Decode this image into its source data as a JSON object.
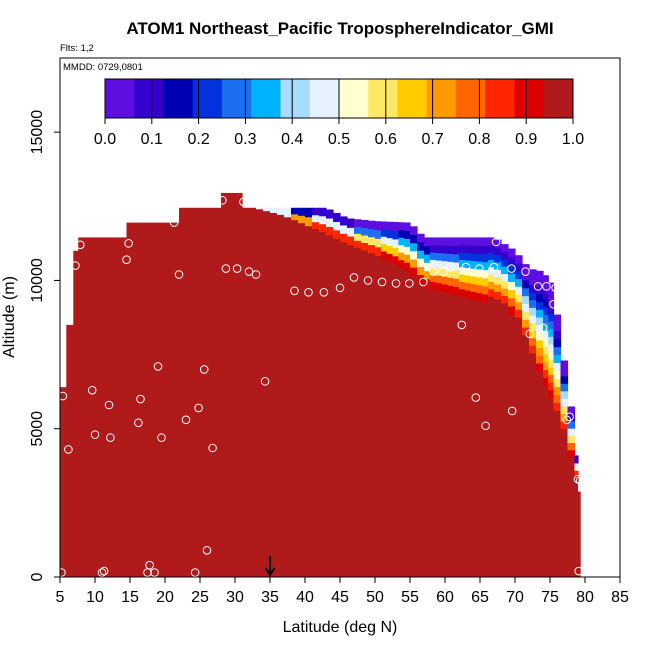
{
  "chart_data": {
    "type": "heatmap",
    "title": "ATOM1 Northeast_Pacific TroposphereIndicator_GMI",
    "notes": [
      "Flts: 1,2",
      "MMDD: 0729,0801"
    ],
    "xlabel": "Latitude (deg N)",
    "ylabel": "Altitude (m)",
    "xlim": [
      5,
      85
    ],
    "ylim": [
      0,
      17500
    ],
    "xticks": [
      5,
      10,
      15,
      20,
      25,
      30,
      35,
      40,
      45,
      50,
      55,
      60,
      65,
      70,
      75,
      80,
      85
    ],
    "yticks": [
      0,
      5000,
      10000,
      15000
    ],
    "colorbar": {
      "ticks": [
        "0.0",
        "0.1",
        "0.2",
        "0.3",
        "0.4",
        "0.5",
        "0.6",
        "0.7",
        "0.8",
        "0.9",
        "1.0"
      ],
      "range": [
        0,
        1
      ],
      "placement": "top, inside plot",
      "colors": [
        "#5e0ee0",
        "#3300cc",
        "#0000b3",
        "#0033dd",
        "#1d6ff2",
        "#00b3ff",
        "#a6dcff",
        "#e6f2ff",
        "#ffffd0",
        "#ffe866",
        "#ffcc00",
        "#ff9900",
        "#ff6600",
        "#ff2600",
        "#dd0000",
        "#b01a1a"
      ]
    },
    "marker": {
      "latitude": 35,
      "symbol": "down-arrow"
    },
    "mask_columns": [
      {
        "lat": 4.9,
        "top": 6400
      },
      {
        "lat": 5.9,
        "top": 8500
      },
      {
        "lat": 6.9,
        "top": 11000
      },
      {
        "lat": 7.6,
        "top": 11450
      },
      {
        "lat": 14.5,
        "top": 11950
      },
      {
        "lat": 22.0,
        "top": 12450
      },
      {
        "lat": 28.0,
        "top": 12950
      },
      {
        "lat": 31.0,
        "top": 12450
      },
      {
        "lat": 33.0,
        "top": 12450
      }
    ],
    "profile": [
      {
        "lat": 33.0,
        "top": 12450,
        "transition": 12450
      },
      {
        "lat": 37.0,
        "top": 12450,
        "transition": 12200
      },
      {
        "lat": 40.0,
        "top": 12450,
        "transition": 11900
      },
      {
        "lat": 43.0,
        "top": 12450,
        "transition": 11600
      },
      {
        "lat": 46.0,
        "top": 12100,
        "transition": 11250
      },
      {
        "lat": 50.0,
        "top": 12000,
        "transition": 10900
      },
      {
        "lat": 55.0,
        "top": 11950,
        "transition": 10300
      },
      {
        "lat": 57.0,
        "top": 11450,
        "transition": 9800
      },
      {
        "lat": 62.0,
        "top": 11450,
        "transition": 9500
      },
      {
        "lat": 67.0,
        "top": 11450,
        "transition": 9200
      },
      {
        "lat": 70.0,
        "top": 11000,
        "transition": 8800
      },
      {
        "lat": 72.0,
        "top": 10400,
        "transition": 7600
      },
      {
        "lat": 74.0,
        "top": 10300,
        "transition": 6400
      },
      {
        "lat": 75.5,
        "top": 9800,
        "transition": 5600
      },
      {
        "lat": 76.5,
        "top": 7900,
        "transition": 5100
      },
      {
        "lat": 77.5,
        "top": 6700,
        "transition": 4400
      },
      {
        "lat": 78.5,
        "top": 4800,
        "transition": 3700
      },
      {
        "lat": 79.0,
        "top": 3400,
        "transition": 3000
      },
      {
        "lat": 79.3,
        "top": 3000,
        "transition": 2800
      }
    ],
    "points": [
      [
        5.4,
        6100
      ],
      [
        5.2,
        150
      ],
      [
        6.2,
        4300
      ],
      [
        7.2,
        10500
      ],
      [
        7.9,
        11200
      ],
      [
        9.6,
        6300
      ],
      [
        10.0,
        4800
      ],
      [
        11.0,
        150
      ],
      [
        11.3,
        200
      ],
      [
        12.0,
        5800
      ],
      [
        12.2,
        4700
      ],
      [
        14.5,
        10700
      ],
      [
        14.8,
        11250
      ],
      [
        16.2,
        5200
      ],
      [
        16.5,
        6000
      ],
      [
        17.5,
        150
      ],
      [
        17.8,
        400
      ],
      [
        18.5,
        150
      ],
      [
        19.0,
        7100
      ],
      [
        19.5,
        4700
      ],
      [
        21.3,
        11950
      ],
      [
        22.0,
        10200
      ],
      [
        23.0,
        5300
      ],
      [
        24.3,
        150
      ],
      [
        24.8,
        5700
      ],
      [
        25.6,
        7000
      ],
      [
        26.0,
        900
      ],
      [
        26.8,
        4350
      ],
      [
        28.2,
        12700
      ],
      [
        28.7,
        10400
      ],
      [
        30.3,
        10400
      ],
      [
        31.2,
        12650
      ],
      [
        32.0,
        10300
      ],
      [
        33.0,
        10200
      ],
      [
        34.3,
        6600
      ],
      [
        38.5,
        9650
      ],
      [
        40.5,
        9600
      ],
      [
        42.7,
        9600
      ],
      [
        45.0,
        9750
      ],
      [
        47.0,
        10100
      ],
      [
        49.0,
        10000
      ],
      [
        51.0,
        9950
      ],
      [
        53.0,
        9900
      ],
      [
        54.9,
        9900
      ],
      [
        56.9,
        9950
      ],
      [
        58.3,
        10300
      ],
      [
        59.7,
        10300
      ],
      [
        60.8,
        10450
      ],
      [
        62.4,
        8500
      ],
      [
        63.0,
        10450
      ],
      [
        64.4,
        6050
      ],
      [
        64.9,
        10400
      ],
      [
        65.8,
        5100
      ],
      [
        67.0,
        10450
      ],
      [
        67.3,
        11300
      ],
      [
        69.5,
        10400
      ],
      [
        69.6,
        5600
      ],
      [
        71.5,
        10300
      ],
      [
        72.1,
        8200
      ],
      [
        73.3,
        9800
      ],
      [
        74.0,
        8400
      ],
      [
        74.5,
        9800
      ],
      [
        75.5,
        9200
      ],
      [
        75.8,
        9750
      ],
      [
        77.4,
        5300
      ],
      [
        77.8,
        5400
      ],
      [
        79.0,
        3300
      ],
      [
        79.3,
        3250
      ],
      [
        79.1,
        200
      ]
    ]
  }
}
